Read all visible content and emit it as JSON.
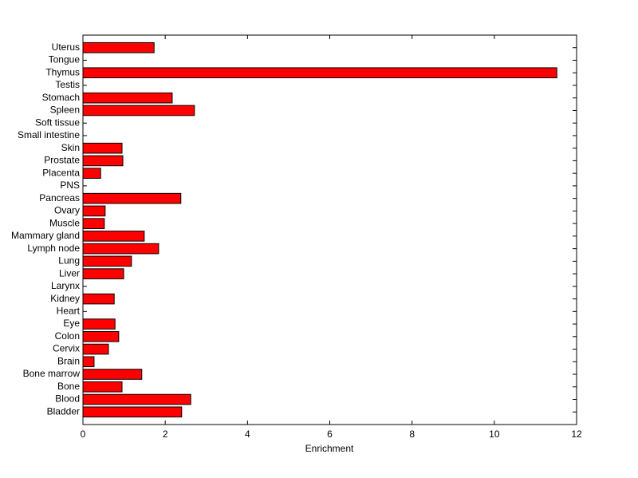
{
  "chart_data": {
    "type": "barh",
    "xlabel": "Enrichment",
    "categories": [
      "Bladder",
      "Blood",
      "Bone",
      "Bone marrow",
      "Brain",
      "Cervix",
      "Colon",
      "Eye",
      "Heart",
      "Kidney",
      "Larynx",
      "Liver",
      "Lung",
      "Lymph node",
      "Mammary gland",
      "Muscle",
      "Ovary",
      "Pancreas",
      "PNS",
      "Placenta",
      "Prostate",
      "Skin",
      "Small intestine",
      "Soft tissue",
      "Spleen",
      "Stomach",
      "Testis",
      "Thymus",
      "Tongue",
      "Uterus"
    ],
    "values": [
      2.4,
      2.62,
      0.95,
      1.43,
      0.27,
      0.62,
      0.87,
      0.78,
      0,
      0.76,
      0,
      0.99,
      1.18,
      1.84,
      1.49,
      0.52,
      0.54,
      2.38,
      0,
      0.43,
      0.97,
      0.95,
      0,
      0,
      2.71,
      2.17,
      0,
      11.52,
      0,
      1.73
    ],
    "color": "#ff0000",
    "xlim": [
      0,
      12
    ],
    "xticks": [
      0,
      2,
      4,
      6,
      8,
      10,
      12
    ]
  }
}
